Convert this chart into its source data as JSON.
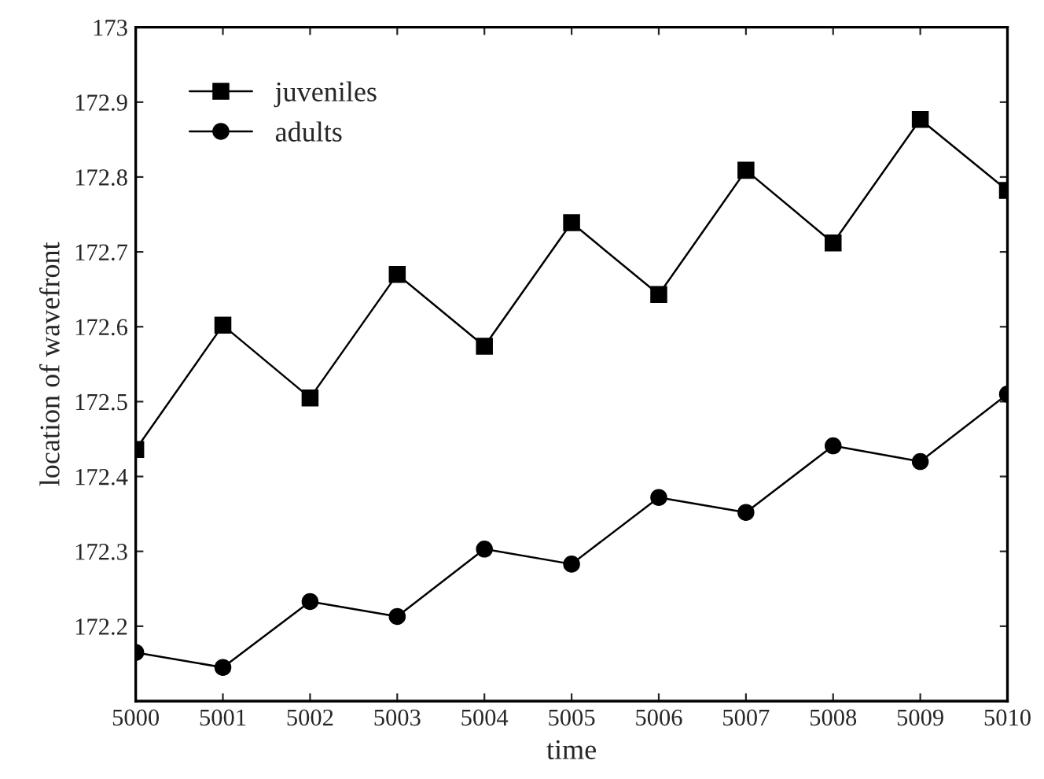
{
  "chart_data": {
    "type": "line",
    "xlabel": "time",
    "ylabel": "location of wavefront",
    "x": [
      5000,
      5001,
      5002,
      5003,
      5004,
      5005,
      5006,
      5007,
      5008,
      5009,
      5010
    ],
    "series": [
      {
        "name": "juveniles",
        "color": "#000000",
        "marker": "square",
        "values": [
          172.436,
          172.602,
          172.505,
          172.67,
          172.574,
          172.739,
          172.643,
          172.809,
          172.712,
          172.877,
          172.782
        ]
      },
      {
        "name": "adults",
        "color": "#000000",
        "marker": "circle",
        "values": [
          172.165,
          172.145,
          172.233,
          172.213,
          172.303,
          172.283,
          172.372,
          172.352,
          172.441,
          172.42,
          172.51
        ]
      }
    ],
    "xlim": [
      5000,
      5010
    ],
    "xticks": [
      5000,
      5001,
      5002,
      5003,
      5004,
      5005,
      5006,
      5007,
      5008,
      5009,
      5010
    ],
    "ylim": [
      172.1,
      173
    ],
    "yticks": [
      172.2,
      172.3,
      172.4,
      172.5,
      172.6,
      172.7,
      172.8,
      172.9,
      173
    ],
    "legend": "top left",
    "grid": false,
    "line_style": "solid"
  }
}
